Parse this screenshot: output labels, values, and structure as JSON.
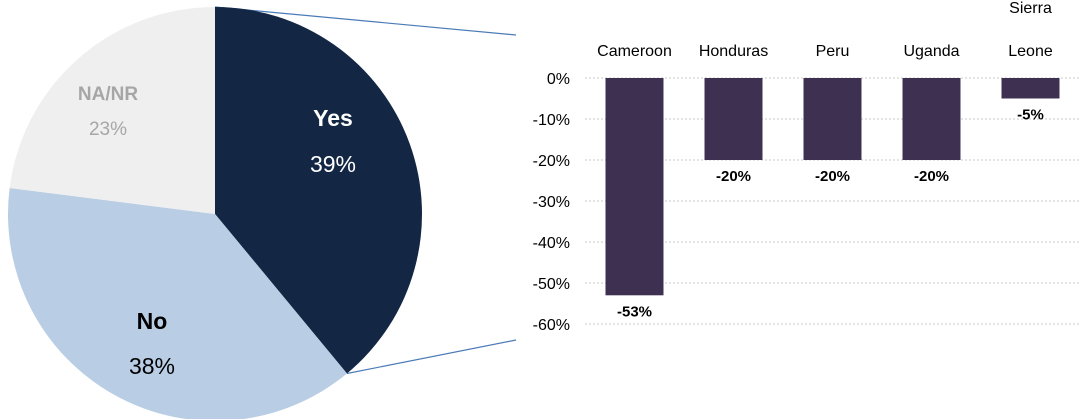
{
  "colors": {
    "yes": "#132745",
    "no": "#b9cde4",
    "na": "#efefef",
    "bar": "#3e3050",
    "connector": "#4a7bb7",
    "grid": "#c8c8c8"
  },
  "chart_data": [
    {
      "type": "pie",
      "slices": [
        {
          "label": "Yes",
          "value": 39,
          "display": "39%",
          "color": "#132745",
          "text_color": "#ffffff"
        },
        {
          "label": "No",
          "value": 38,
          "display": "38%",
          "color": "#b9cde4",
          "text_color": "#000000"
        },
        {
          "label": "NA/NR",
          "value": 23,
          "display": "23%",
          "color": "#efefef",
          "text_color": "#a6a6a6"
        }
      ]
    },
    {
      "type": "bar",
      "categories": [
        "Cameroon",
        "Honduras",
        "Peru",
        "Uganda",
        "Sierra Leone"
      ],
      "values": [
        -53,
        -20,
        -20,
        -20,
        -5
      ],
      "data_labels": [
        "-53%",
        "-20%",
        "-20%",
        "-20%",
        "-5%"
      ],
      "ylim": [
        -60,
        0
      ],
      "yticks": [
        0,
        -10,
        -20,
        -30,
        -40,
        -50,
        -60
      ],
      "ytick_labels": [
        "0%",
        "-10%",
        "-20%",
        "-30%",
        "-40%",
        "-50%",
        "-60%"
      ],
      "grid": true,
      "category_axis": "top"
    }
  ]
}
